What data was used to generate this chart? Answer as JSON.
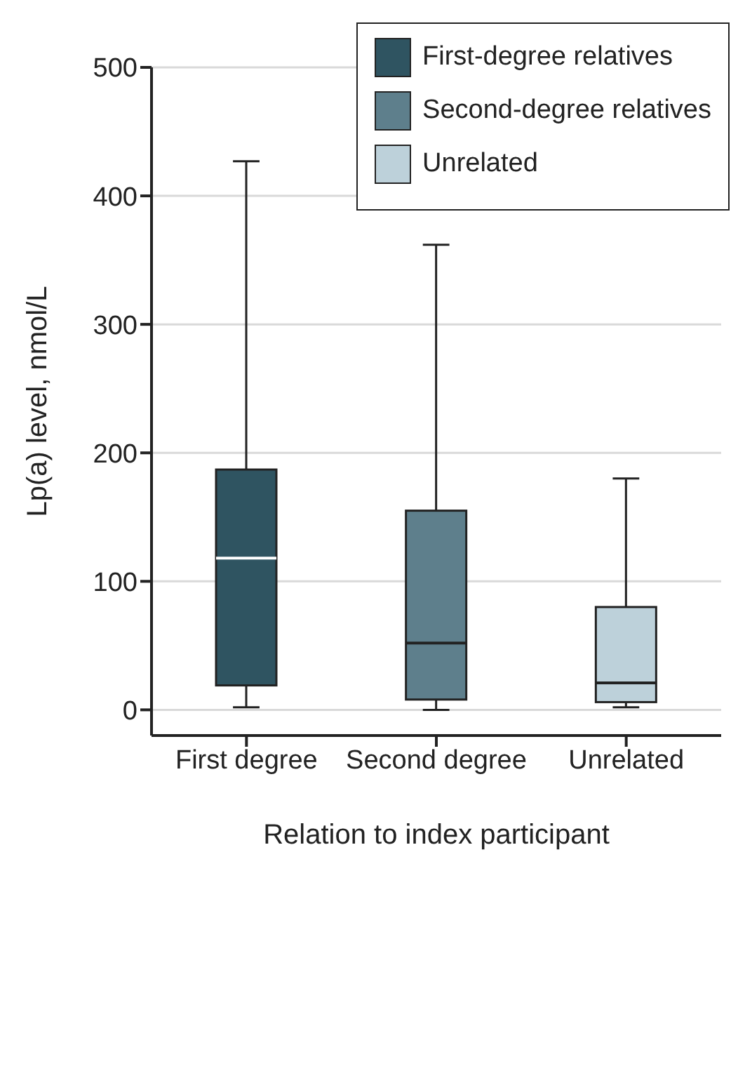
{
  "chart_data": {
    "type": "box",
    "xlabel": "Relation to index participant",
    "ylabel": "Lp(a) level, nmol/L",
    "categories": [
      "First degree",
      "Second degree",
      "Unrelated"
    ],
    "series": [
      {
        "name": "First-degree relatives",
        "color": "#2f5461",
        "boxes": [
          {
            "low": 2,
            "q1": 19,
            "median": 118,
            "q3": 187,
            "high": 427
          },
          null,
          null
        ]
      },
      {
        "name": "Second-degree relatives",
        "color": "#5e7f8c",
        "boxes": [
          null,
          {
            "low": 0,
            "q1": 8,
            "median": 52,
            "q3": 155,
            "high": 362
          },
          null
        ]
      },
      {
        "name": "Unrelated",
        "color": "#bdd1da",
        "boxes": [
          null,
          null,
          {
            "low": 2,
            "q1": 6,
            "median": 21,
            "q3": 80,
            "high": 180
          }
        ]
      }
    ],
    "ylim": [
      -20,
      500
    ],
    "yticks": [
      0,
      100,
      200,
      300,
      400,
      500
    ],
    "grid": "y",
    "legend": "top right"
  }
}
